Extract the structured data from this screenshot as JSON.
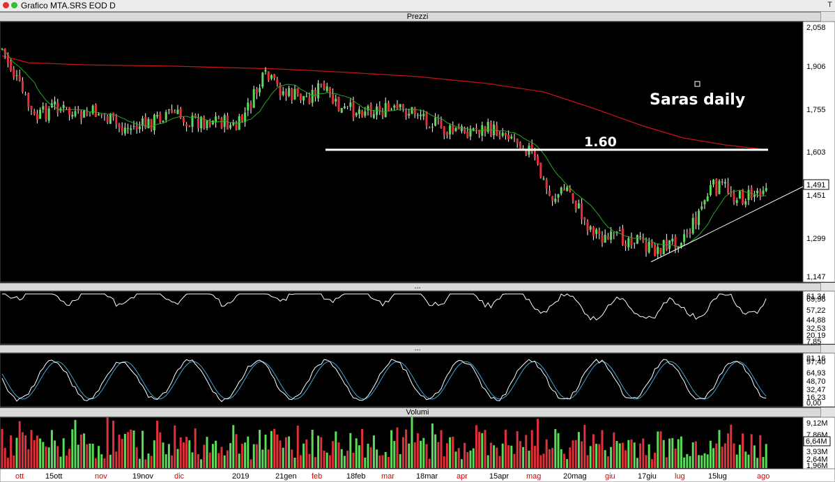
{
  "window": {
    "title": "Grafico MTA.SRS EOD D",
    "right_label": "T"
  },
  "panels": {
    "price": {
      "header": "Prezzi",
      "scale": [
        "2,058",
        "1,906",
        "1,755",
        "1,603",
        "1,451",
        "1,299",
        "1,147"
      ],
      "last_price_label": "1,491",
      "annotation": "Saras daily",
      "level_label": "1.60"
    },
    "osc1": {
      "header": "...",
      "scale": [
        "69,96",
        "57,22",
        "44,88",
        "32,53",
        "20,19",
        "7,85"
      ],
      "last_label": "61,34"
    },
    "osc2": {
      "header": "...",
      "scale": [
        "97,40",
        "64,93",
        "48,70",
        "32,47",
        "16,23",
        "0,00"
      ],
      "last_label": "81,16"
    },
    "volume": {
      "header": "Volumi",
      "scale": [
        "9,12M",
        "7,86M",
        "6,64M",
        "5,22M",
        "3,93M",
        "2,64M",
        "1,96M"
      ],
      "last_label": "6,64M"
    }
  },
  "date_axis": [
    {
      "label": "ott",
      "color": "#e00000"
    },
    {
      "label": "15ott",
      "color": "#000000"
    },
    {
      "label": "nov",
      "color": "#e00000"
    },
    {
      "label": "19nov",
      "color": "#000000"
    },
    {
      "label": "dic",
      "color": "#e00000"
    },
    {
      "label": "2019",
      "color": "#000000"
    },
    {
      "label": "21gen",
      "color": "#000000"
    },
    {
      "label": "feb",
      "color": "#e00000"
    },
    {
      "label": "18feb",
      "color": "#000000"
    },
    {
      "label": "mar",
      "color": "#e00000"
    },
    {
      "label": "18mar",
      "color": "#000000"
    },
    {
      "label": "apr",
      "color": "#e00000"
    },
    {
      "label": "15apr",
      "color": "#000000"
    },
    {
      "label": "mag",
      "color": "#e00000"
    },
    {
      "label": "20mag",
      "color": "#000000"
    },
    {
      "label": "giu",
      "color": "#e00000"
    },
    {
      "label": "17giu",
      "color": "#000000"
    },
    {
      "label": "lug",
      "color": "#e00000"
    },
    {
      "label": "15lug",
      "color": "#000000"
    },
    {
      "label": "ago",
      "color": "#e00000"
    }
  ],
  "colors": {
    "up_candle": "#5adc5a",
    "down_candle": "#e0303a",
    "ma_short": "#1fae1f",
    "ma_long": "#c81414",
    "stoch_k": "#ffffff",
    "stoch_d": "#3aa6d8"
  }
}
